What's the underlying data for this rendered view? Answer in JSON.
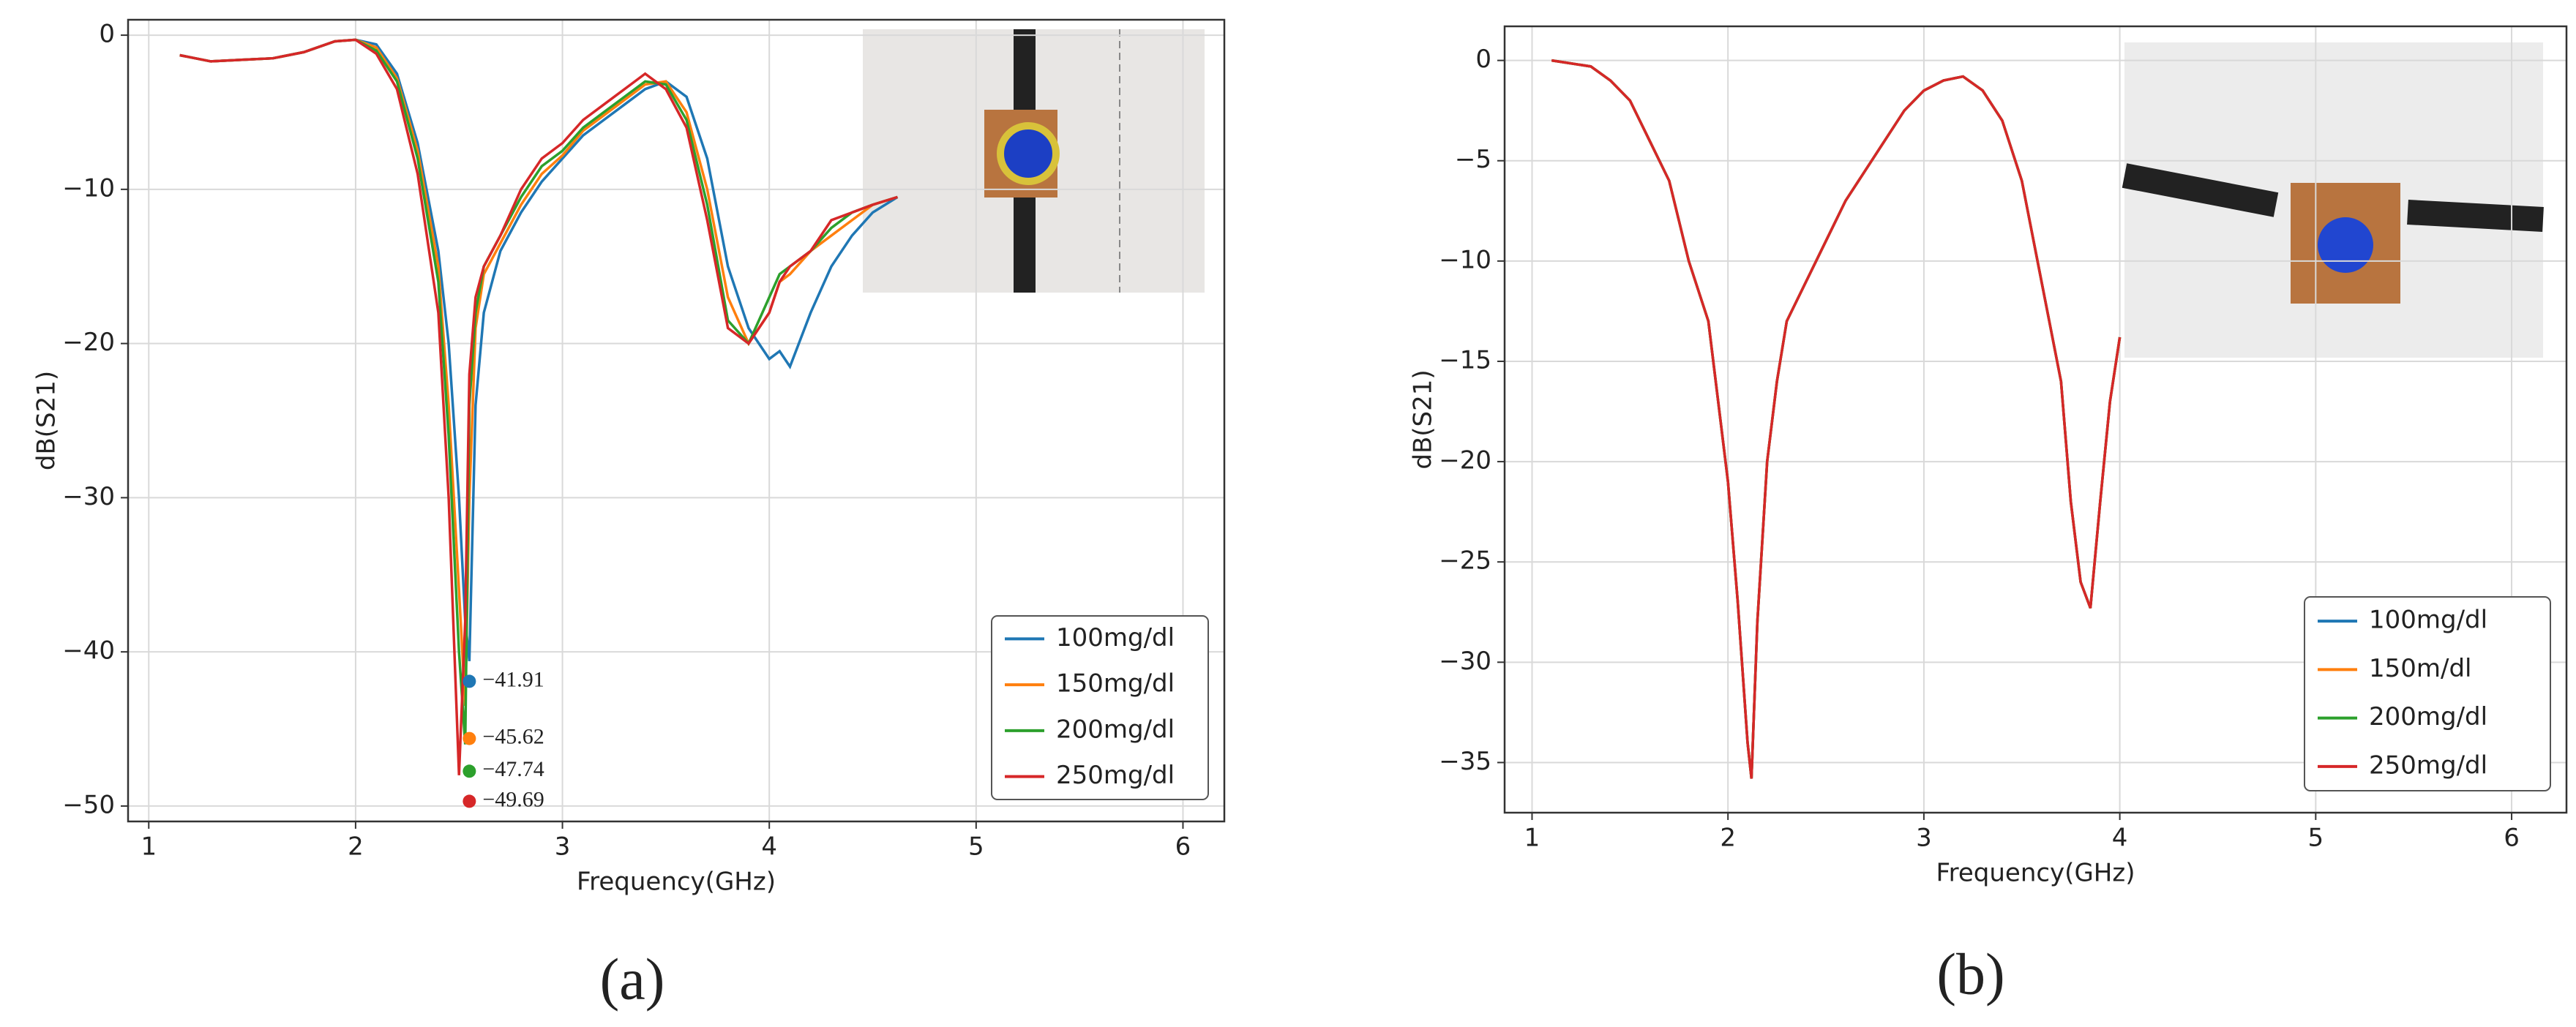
{
  "chart_data": [
    {
      "type": "line",
      "panel_label": "(a)",
      "xlabel": "Frequency(GHz)",
      "ylabel": "dB(S21)",
      "xlim": [
        0.9,
        6.2
      ],
      "xticks": [
        1,
        2,
        3,
        4,
        5,
        6
      ],
      "ylim": [
        -51,
        1
      ],
      "yticks": [
        0,
        {
          "value": -10,
          "label": "−10"
        },
        {
          "value": -20,
          "label": "−20"
        },
        {
          "value": -30,
          "label": "−30"
        },
        {
          "value": -40,
          "label": "−40"
        },
        {
          "value": -50,
          "label": "−50"
        }
      ],
      "grid": true,
      "legend": "lower right",
      "x": [
        1.15,
        1.3,
        1.45,
        1.6,
        1.75,
        1.9,
        2.0,
        2.1,
        2.2,
        2.3,
        2.4,
        2.45,
        2.5,
        2.53,
        2.55,
        2.58,
        2.62,
        2.7,
        2.8,
        2.9,
        3.0,
        3.1,
        3.2,
        3.3,
        3.4,
        3.5,
        3.6,
        3.7,
        3.8,
        3.9,
        4.0,
        4.05,
        4.1,
        4.2,
        4.3,
        4.4,
        4.5,
        4.62
      ],
      "series": [
        {
          "name": "100mg/dl",
          "color": "#1f77b4",
          "values": [
            -1.3,
            -1.7,
            -1.6,
            -1.5,
            -1.1,
            -0.4,
            -0.3,
            -0.6,
            -2.5,
            -7,
            -14,
            -20,
            -30,
            -38,
            -40.6,
            -24,
            -18,
            -14,
            -11.5,
            -9.5,
            -8,
            -6.5,
            -5.5,
            -4.5,
            -3.5,
            -3,
            -4,
            -8,
            -15,
            -19,
            -21,
            -20.5,
            -21.5,
            -18,
            -15,
            -13,
            -11.5,
            -10.5
          ]
        },
        {
          "name": "150mg/dl",
          "color": "#ff7f0e",
          "values": [
            -1.3,
            -1.7,
            -1.6,
            -1.5,
            -1.1,
            -0.4,
            -0.3,
            -0.8,
            -2.8,
            -7.5,
            -15,
            -24,
            -36,
            -43.5,
            -30,
            -19,
            -15.5,
            -13.5,
            -11,
            -9,
            -7.8,
            -6.2,
            -5.2,
            -4.2,
            -3.2,
            -3,
            -5,
            -10,
            -17,
            -20,
            -18,
            -16,
            -15.5,
            -14,
            -13,
            -12,
            -11,
            -10.5
          ]
        },
        {
          "name": "200mg/dl",
          "color": "#2ca02c",
          "values": [
            -1.3,
            -1.7,
            -1.6,
            -1.5,
            -1.1,
            -0.4,
            -0.3,
            -1,
            -3,
            -8,
            -16,
            -26,
            -40,
            -46,
            -24,
            -18,
            -15,
            -13,
            -10.5,
            -8.5,
            -7.5,
            -6,
            -5,
            -4,
            -3,
            -3.2,
            -5.5,
            -11,
            -18.5,
            -20,
            -17,
            -15.5,
            -15,
            -14,
            -12.5,
            -11.5,
            -11,
            -10.5
          ]
        },
        {
          "name": "250mg/dl",
          "color": "#d62728",
          "values": [
            -1.3,
            -1.7,
            -1.6,
            -1.5,
            -1.1,
            -0.4,
            -0.3,
            -1.2,
            -3.5,
            -9,
            -18,
            -30,
            -48,
            -38,
            -22,
            -17,
            -15,
            -13,
            -10,
            -8,
            -7,
            -5.5,
            -4.5,
            -3.5,
            -2.5,
            -3.5,
            -6,
            -12,
            -19,
            -20,
            -18,
            -16,
            -15,
            -14,
            -12,
            -11.5,
            -11,
            -10.5
          ]
        }
      ],
      "markers": [
        {
          "x": 2.55,
          "value": -41.91,
          "label": "−41.91",
          "color": "#1f77b4"
        },
        {
          "x": 2.55,
          "value": -45.62,
          "label": "−45.62",
          "color": "#ff7f0e"
        },
        {
          "x": 2.55,
          "value": -47.74,
          "label": "−47.74",
          "color": "#2ca02c"
        },
        {
          "x": 2.55,
          "value": -49.69,
          "label": "−49.69",
          "color": "#d62728"
        }
      ]
    },
    {
      "type": "line",
      "panel_label": "(b)",
      "xlabel": "Frequency(GHz)",
      "ylabel": "dB(S21)",
      "xlim": [
        0.86,
        6.28
      ],
      "xticks": [
        1,
        2,
        3,
        4,
        5,
        6
      ],
      "ylim": [
        -37.5,
        1.7
      ],
      "yticks": [
        0,
        {
          "value": -5,
          "label": "−5"
        },
        {
          "value": -10,
          "label": "−10"
        },
        {
          "value": -15,
          "label": "−15"
        },
        {
          "value": -20,
          "label": "−20"
        },
        {
          "value": -25,
          "label": "−25"
        },
        {
          "value": -30,
          "label": "−30"
        },
        {
          "value": -35,
          "label": "−35"
        }
      ],
      "grid": true,
      "legend": "lower right",
      "x": [
        1.1,
        1.3,
        1.4,
        1.5,
        1.6,
        1.7,
        1.8,
        1.9,
        1.95,
        2.0,
        2.05,
        2.1,
        2.12,
        2.15,
        2.2,
        2.25,
        2.3,
        2.4,
        2.5,
        2.6,
        2.7,
        2.8,
        2.9,
        3.0,
        3.1,
        3.2,
        3.3,
        3.4,
        3.5,
        3.6,
        3.7,
        3.75,
        3.8,
        3.85,
        3.9,
        3.95,
        4.0
      ],
      "series": [
        {
          "name": "100mg/dl",
          "color": "#1f77b4",
          "values": [
            0,
            -0.3,
            -1,
            -2,
            -4,
            -6,
            -10,
            -13,
            -17,
            -21,
            -27,
            -34,
            -35.8,
            -28,
            -20,
            -16,
            -13,
            -11,
            -9,
            -7,
            -5.5,
            -4,
            -2.5,
            -1.5,
            -1,
            -0.8,
            -1.5,
            -3,
            -6,
            -11,
            -16,
            -22,
            -26,
            -27.3,
            -22,
            -17,
            -13.8
          ]
        },
        {
          "name": "150m/dl",
          "color": "#ff7f0e",
          "values": [
            0,
            -0.3,
            -1,
            -2,
            -4,
            -6,
            -10,
            -13,
            -17,
            -21,
            -27,
            -34,
            -35.8,
            -28,
            -20,
            -16,
            -13,
            -11,
            -9,
            -7,
            -5.5,
            -4,
            -2.5,
            -1.5,
            -1,
            -0.8,
            -1.5,
            -3,
            -6,
            -11,
            -16,
            -22,
            -26,
            -27.3,
            -22,
            -17,
            -13.8
          ]
        },
        {
          "name": "200mg/dl",
          "color": "#2ca02c",
          "values": [
            0,
            -0.3,
            -1,
            -2,
            -4,
            -6,
            -10,
            -13,
            -17,
            -21,
            -27,
            -34,
            -35.8,
            -28,
            -20,
            -16,
            -13,
            -11,
            -9,
            -7,
            -5.5,
            -4,
            -2.5,
            -1.5,
            -1,
            -0.8,
            -1.5,
            -3,
            -6,
            -11,
            -16,
            -22,
            -26,
            -27.3,
            -22,
            -17,
            -13.8
          ]
        },
        {
          "name": "250mg/dl",
          "color": "#d62728",
          "values": [
            0,
            -0.3,
            -1,
            -2,
            -4,
            -6,
            -10,
            -13,
            -17,
            -21,
            -27,
            -34,
            -35.8,
            -28,
            -20,
            -16,
            -13,
            -11,
            -9,
            -7,
            -5.5,
            -4,
            -2.5,
            -1.5,
            -1,
            -0.8,
            -1.5,
            -3,
            -6,
            -11,
            -16,
            -22,
            -26,
            -27.3,
            -22,
            -17,
            -13.8
          ]
        }
      ]
    }
  ]
}
